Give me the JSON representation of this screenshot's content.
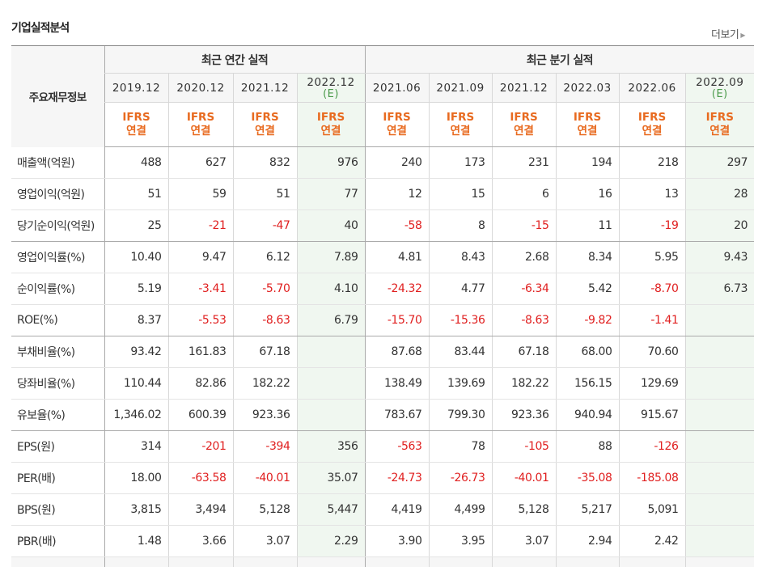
{
  "title": "기업실적분석",
  "more_label": "더보기",
  "row_header": "주요재무정보",
  "groups": {
    "annual": "최근 연간 실적",
    "quarter": "최근 분기 실적"
  },
  "periods": [
    {
      "date": "2019.12",
      "est": "",
      "ifrs": "IFRS",
      "type": "연결"
    },
    {
      "date": "2020.12",
      "est": "",
      "ifrs": "IFRS",
      "type": "연결"
    },
    {
      "date": "2021.12",
      "est": "",
      "ifrs": "IFRS",
      "type": "연결"
    },
    {
      "date": "2022.12",
      "est": "(E)",
      "ifrs": "IFRS",
      "type": "연결"
    },
    {
      "date": "2021.06",
      "est": "",
      "ifrs": "IFRS",
      "type": "연결"
    },
    {
      "date": "2021.09",
      "est": "",
      "ifrs": "IFRS",
      "type": "연결"
    },
    {
      "date": "2021.12",
      "est": "",
      "ifrs": "IFRS",
      "type": "연결"
    },
    {
      "date": "2022.03",
      "est": "",
      "ifrs": "IFRS",
      "type": "연결"
    },
    {
      "date": "2022.06",
      "est": "",
      "ifrs": "IFRS",
      "type": "연결"
    },
    {
      "date": "2022.09",
      "est": "(E)",
      "ifrs": "IFRS",
      "type": "연결"
    }
  ],
  "rows": [
    {
      "label": "매출액(억원)",
      "values": [
        "488",
        "627",
        "832",
        "976",
        "240",
        "173",
        "231",
        "194",
        "218",
        "297"
      ]
    },
    {
      "label": "영업이익(억원)",
      "values": [
        "51",
        "59",
        "51",
        "77",
        "12",
        "15",
        "6",
        "16",
        "13",
        "28"
      ]
    },
    {
      "label": "당기순이익(억원)",
      "values": [
        "25",
        "-21",
        "-47",
        "40",
        "-58",
        "8",
        "-15",
        "11",
        "-19",
        "20"
      ]
    },
    {
      "label": "영업이익률(%)",
      "values": [
        "10.40",
        "9.47",
        "6.12",
        "7.89",
        "4.81",
        "8.43",
        "2.68",
        "8.34",
        "5.95",
        "9.43"
      ]
    },
    {
      "label": "순이익률(%)",
      "values": [
        "5.19",
        "-3.41",
        "-5.70",
        "4.10",
        "-24.32",
        "4.77",
        "-6.34",
        "5.42",
        "-8.70",
        "6.73"
      ]
    },
    {
      "label": "ROE(%)",
      "values": [
        "8.37",
        "-5.53",
        "-8.63",
        "6.79",
        "-15.70",
        "-15.36",
        "-8.63",
        "-9.82",
        "-1.41",
        ""
      ]
    },
    {
      "label": "부채비율(%)",
      "values": [
        "93.42",
        "161.83",
        "67.18",
        "",
        "87.68",
        "83.44",
        "67.18",
        "68.00",
        "70.60",
        ""
      ]
    },
    {
      "label": "당좌비율(%)",
      "values": [
        "110.44",
        "82.86",
        "182.22",
        "",
        "138.49",
        "139.69",
        "182.22",
        "156.15",
        "129.69",
        ""
      ]
    },
    {
      "label": "유보율(%)",
      "values": [
        "1,346.02",
        "600.39",
        "923.36",
        "",
        "783.67",
        "799.30",
        "923.36",
        "940.94",
        "915.67",
        ""
      ]
    },
    {
      "label": "EPS(원)",
      "values": [
        "314",
        "-201",
        "-394",
        "356",
        "-563",
        "78",
        "-105",
        "88",
        "-126",
        ""
      ]
    },
    {
      "label": "PER(배)",
      "values": [
        "18.00",
        "-63.58",
        "-40.01",
        "35.07",
        "-24.73",
        "-26.73",
        "-40.01",
        "-35.08",
        "-185.08",
        ""
      ]
    },
    {
      "label": "BPS(원)",
      "values": [
        "3,815",
        "3,494",
        "5,128",
        "5,447",
        "4,419",
        "4,499",
        "5,128",
        "5,217",
        "5,091",
        ""
      ]
    },
    {
      "label": "PBR(배)",
      "values": [
        "1.48",
        "3.66",
        "3.07",
        "2.29",
        "3.90",
        "3.95",
        "3.07",
        "2.94",
        "2.42",
        ""
      ]
    }
  ],
  "group_breaks": [
    2,
    5,
    8
  ]
}
